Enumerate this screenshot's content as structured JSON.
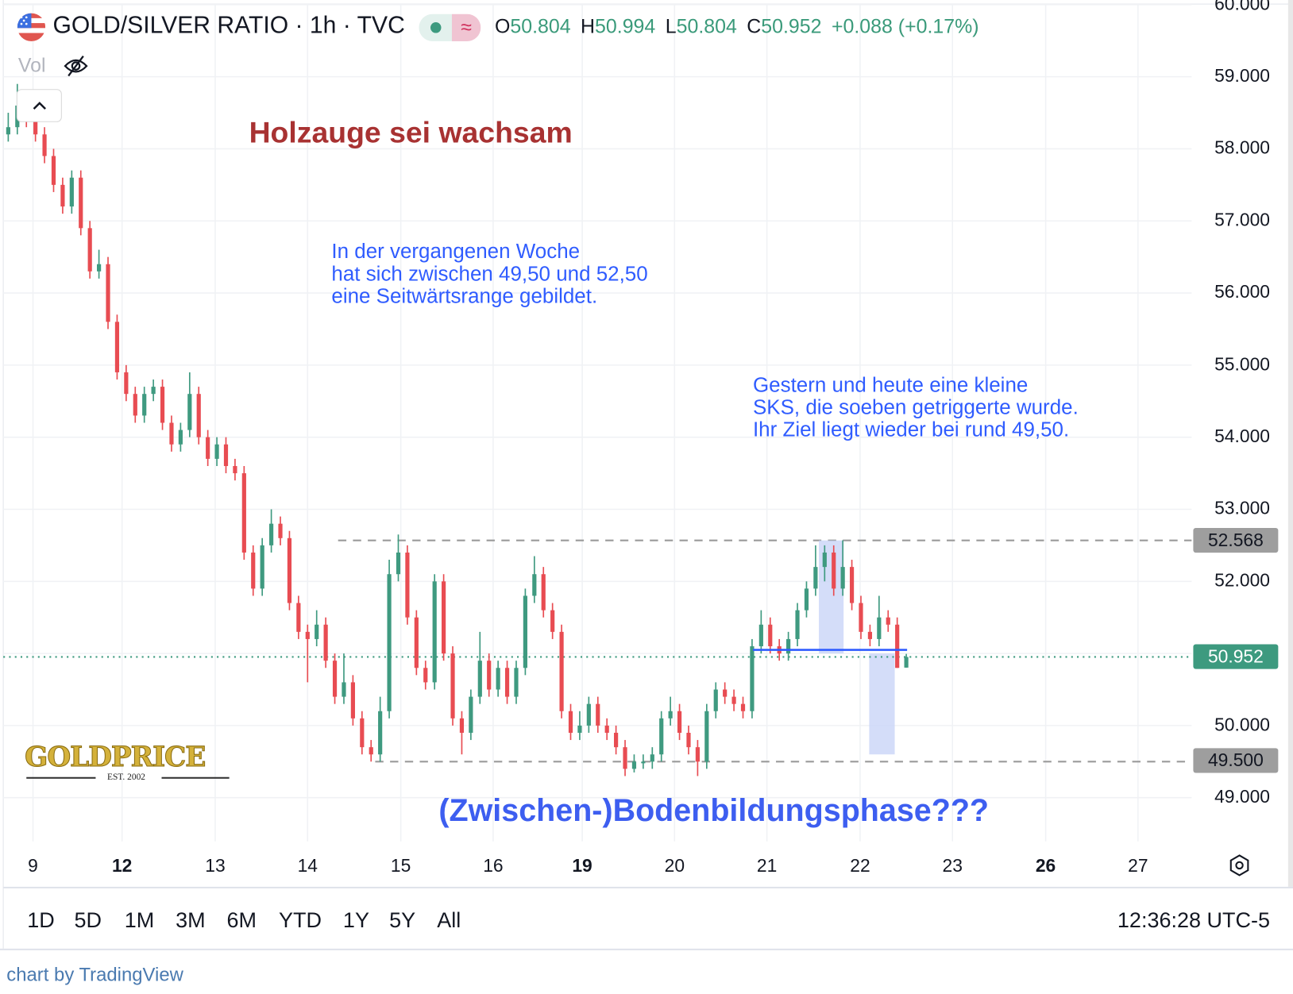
{
  "header": {
    "symbol_title": "GOLD/SILVER RATIO · 1h · TVC",
    "ohlc": {
      "o_label": "O",
      "o": "50.804",
      "h_label": "H",
      "h": "50.994",
      "l_label": "L",
      "l": "50.804",
      "c_label": "C",
      "c": "50.952",
      "change": "+0.088 (+0.17%)"
    },
    "pill_icon_left": "market-status-dot",
    "pill_icon_right": "≈",
    "vol_label": "Vol",
    "vol_icon": "eye-off-icon",
    "collapse_icon": "chevron-up-icon"
  },
  "annotations": {
    "title": "Holzauge sei wachsam",
    "note1": [
      "In der vergangenen Woche",
      "hat sich zwischen 49,50 und 52,50",
      "eine Seitwärtsrange gebildet."
    ],
    "note2": [
      "Gestern und heute eine kleine",
      "SKS, die soeben getriggerte wurde.",
      "Ihr Ziel liegt wieder bei rund 49,50."
    ],
    "bottom": "(Zwischen-)Bodenbildungsphase???"
  },
  "logo": {
    "text": "GOLDPRICE",
    "est": "EST. 2002"
  },
  "price_labels": {
    "resistance": "52.568",
    "last": "50.952",
    "support": "49.500"
  },
  "time_axis": {
    "labels": [
      {
        "t": "9",
        "bold": false
      },
      {
        "t": "12",
        "bold": true
      },
      {
        "t": "13",
        "bold": false
      },
      {
        "t": "14",
        "bold": false
      },
      {
        "t": "15",
        "bold": false
      },
      {
        "t": "16",
        "bold": false
      },
      {
        "t": "19",
        "bold": true
      },
      {
        "t": "20",
        "bold": false
      },
      {
        "t": "21",
        "bold": false
      },
      {
        "t": "22",
        "bold": false
      },
      {
        "t": "23",
        "bold": false
      },
      {
        "t": "26",
        "bold": true
      },
      {
        "t": "27",
        "bold": false
      }
    ],
    "settings_icon": "gear-icon"
  },
  "range_bar": {
    "buttons": [
      "1D",
      "5D",
      "1M",
      "3M",
      "6M",
      "YTD",
      "1Y",
      "5Y",
      "All"
    ],
    "clock": "12:36:28 UTC-5"
  },
  "credit": "chart by TradingView",
  "colors": {
    "up": "#3f9a80",
    "down": "#e84c52",
    "annotation_blue": "#2f5cff",
    "annotation_red": "#a83232",
    "neckline": "#2f5cff",
    "target_box": "#c9d4f7",
    "last_price": "#3d9a7f",
    "level_label": "#9e9e9e"
  },
  "chart_data": {
    "type": "candlestick",
    "title": "GOLD/SILVER RATIO · 1h · TVC",
    "y_ticks": [
      "60.000",
      "59.000",
      "58.000",
      "57.000",
      "56.000",
      "55.000",
      "54.000",
      "53.000",
      "52.000",
      "50.000",
      "49.000"
    ],
    "ylim": [
      48.6,
      60.1
    ],
    "grid": true,
    "levels": {
      "resistance": 52.568,
      "support": 49.5,
      "last": 50.952,
      "neckline": 51.05
    },
    "target_boxes": [
      {
        "low": 51.0,
        "high": 52.568
      },
      {
        "low": 49.6,
        "high": 51.0
      }
    ],
    "ohlc": [
      [
        58.2,
        58.5,
        58.1,
        58.3
      ],
      [
        58.3,
        58.9,
        58.2,
        58.6
      ],
      [
        58.6,
        58.7,
        58.3,
        58.4
      ],
      [
        58.4,
        58.5,
        58.1,
        58.2
      ],
      [
        58.2,
        58.3,
        57.8,
        57.9
      ],
      [
        57.9,
        58.0,
        57.4,
        57.5
      ],
      [
        57.5,
        57.6,
        57.1,
        57.2
      ],
      [
        57.2,
        57.7,
        57.1,
        57.6
      ],
      [
        57.6,
        57.7,
        56.8,
        56.9
      ],
      [
        56.9,
        57.0,
        56.2,
        56.3
      ],
      [
        56.3,
        56.6,
        56.2,
        56.4
      ],
      [
        56.4,
        56.5,
        55.5,
        55.6
      ],
      [
        55.6,
        55.7,
        54.8,
        54.9
      ],
      [
        54.9,
        55.0,
        54.5,
        54.6
      ],
      [
        54.6,
        54.7,
        54.2,
        54.3
      ],
      [
        54.3,
        54.7,
        54.2,
        54.6
      ],
      [
        54.6,
        54.8,
        54.5,
        54.7
      ],
      [
        54.7,
        54.8,
        54.1,
        54.2
      ],
      [
        54.2,
        54.3,
        53.8,
        53.9
      ],
      [
        53.9,
        54.2,
        53.8,
        54.1
      ],
      [
        54.1,
        54.9,
        54.0,
        54.6
      ],
      [
        54.6,
        54.7,
        53.9,
        54.0
      ],
      [
        54.0,
        54.1,
        53.6,
        53.7
      ],
      [
        53.7,
        54.0,
        53.6,
        53.9
      ],
      [
        53.9,
        54.0,
        53.5,
        53.6
      ],
      [
        53.6,
        53.7,
        53.4,
        53.5
      ],
      [
        53.5,
        53.6,
        52.3,
        52.4
      ],
      [
        52.4,
        52.5,
        51.8,
        51.9
      ],
      [
        51.9,
        52.6,
        51.8,
        52.5
      ],
      [
        52.5,
        53.0,
        52.4,
        52.8
      ],
      [
        52.8,
        52.9,
        52.5,
        52.6
      ],
      [
        52.6,
        52.7,
        51.6,
        51.7
      ],
      [
        51.7,
        51.8,
        51.2,
        51.3
      ],
      [
        51.3,
        51.4,
        50.6,
        51.2
      ],
      [
        51.2,
        51.6,
        51.1,
        51.4
      ],
      [
        51.4,
        51.5,
        50.8,
        50.9
      ],
      [
        50.9,
        51.0,
        50.3,
        50.4
      ],
      [
        50.4,
        51.0,
        50.3,
        50.6
      ],
      [
        50.6,
        50.7,
        50.0,
        50.1
      ],
      [
        50.1,
        50.2,
        49.6,
        49.7
      ],
      [
        49.7,
        49.8,
        49.5,
        49.6
      ],
      [
        49.6,
        50.4,
        49.5,
        50.2
      ],
      [
        50.2,
        52.3,
        50.1,
        52.1
      ],
      [
        52.1,
        52.65,
        52.0,
        52.4
      ],
      [
        52.4,
        52.5,
        51.4,
        51.5
      ],
      [
        51.5,
        51.6,
        50.7,
        50.8
      ],
      [
        50.8,
        50.9,
        50.5,
        50.6
      ],
      [
        50.6,
        52.1,
        50.5,
        52.0
      ],
      [
        52.0,
        52.1,
        50.9,
        51.0
      ],
      [
        51.0,
        51.1,
        50.0,
        50.1
      ],
      [
        50.1,
        50.2,
        49.6,
        49.9
      ],
      [
        49.9,
        50.5,
        49.8,
        50.4
      ],
      [
        50.4,
        51.3,
        50.3,
        50.9
      ],
      [
        50.9,
        51.0,
        50.4,
        50.5
      ],
      [
        50.5,
        50.9,
        50.4,
        50.8
      ],
      [
        50.8,
        50.9,
        50.3,
        50.4
      ],
      [
        50.4,
        50.9,
        50.3,
        50.8
      ],
      [
        50.8,
        51.9,
        50.7,
        51.8
      ],
      [
        51.8,
        52.35,
        51.7,
        52.1
      ],
      [
        52.1,
        52.2,
        51.5,
        51.6
      ],
      [
        51.6,
        51.7,
        51.2,
        51.3
      ],
      [
        51.3,
        51.4,
        50.1,
        50.2
      ],
      [
        50.2,
        50.3,
        49.8,
        49.9
      ],
      [
        49.9,
        50.2,
        49.8,
        50.0
      ],
      [
        50.0,
        50.4,
        49.9,
        50.3
      ],
      [
        50.3,
        50.4,
        49.9,
        50.0
      ],
      [
        50.0,
        50.1,
        49.8,
        49.9
      ],
      [
        49.9,
        50.0,
        49.6,
        49.7
      ],
      [
        49.7,
        49.8,
        49.3,
        49.4
      ],
      [
        49.4,
        49.6,
        49.35,
        49.5
      ],
      [
        49.5,
        49.6,
        49.4,
        49.5
      ],
      [
        49.5,
        49.7,
        49.4,
        49.6
      ],
      [
        49.6,
        50.2,
        49.5,
        50.1
      ],
      [
        50.1,
        50.4,
        50.0,
        50.2
      ],
      [
        50.2,
        50.3,
        49.8,
        49.9
      ],
      [
        49.9,
        50.0,
        49.6,
        49.7
      ],
      [
        49.7,
        49.8,
        49.3,
        49.5
      ],
      [
        49.5,
        50.3,
        49.4,
        50.2
      ],
      [
        50.2,
        50.6,
        50.1,
        50.5
      ],
      [
        50.5,
        50.6,
        50.3,
        50.4
      ],
      [
        50.4,
        50.5,
        50.2,
        50.3
      ],
      [
        50.3,
        50.4,
        50.1,
        50.2
      ],
      [
        50.2,
        51.2,
        50.1,
        51.1
      ],
      [
        51.1,
        51.6,
        51.0,
        51.4
      ],
      [
        51.4,
        51.5,
        51.0,
        51.1
      ],
      [
        51.1,
        51.2,
        50.9,
        51.0
      ],
      [
        51.0,
        51.3,
        50.9,
        51.2
      ],
      [
        51.2,
        51.7,
        51.1,
        51.6
      ],
      [
        51.6,
        52.0,
        51.5,
        51.9
      ],
      [
        51.9,
        52.5,
        51.8,
        52.2
      ],
      [
        52.2,
        52.5,
        52.0,
        52.4
      ],
      [
        52.4,
        52.5,
        51.8,
        51.9
      ],
      [
        51.9,
        52.57,
        51.8,
        52.2
      ],
      [
        52.2,
        52.3,
        51.6,
        51.7
      ],
      [
        51.7,
        51.8,
        51.2,
        51.3
      ],
      [
        51.3,
        51.4,
        51.1,
        51.2
      ],
      [
        51.2,
        51.8,
        51.1,
        51.5
      ],
      [
        51.5,
        51.6,
        51.3,
        51.4
      ],
      [
        51.4,
        51.5,
        50.8,
        50.8
      ],
      [
        50.804,
        50.994,
        50.804,
        50.952
      ]
    ]
  }
}
